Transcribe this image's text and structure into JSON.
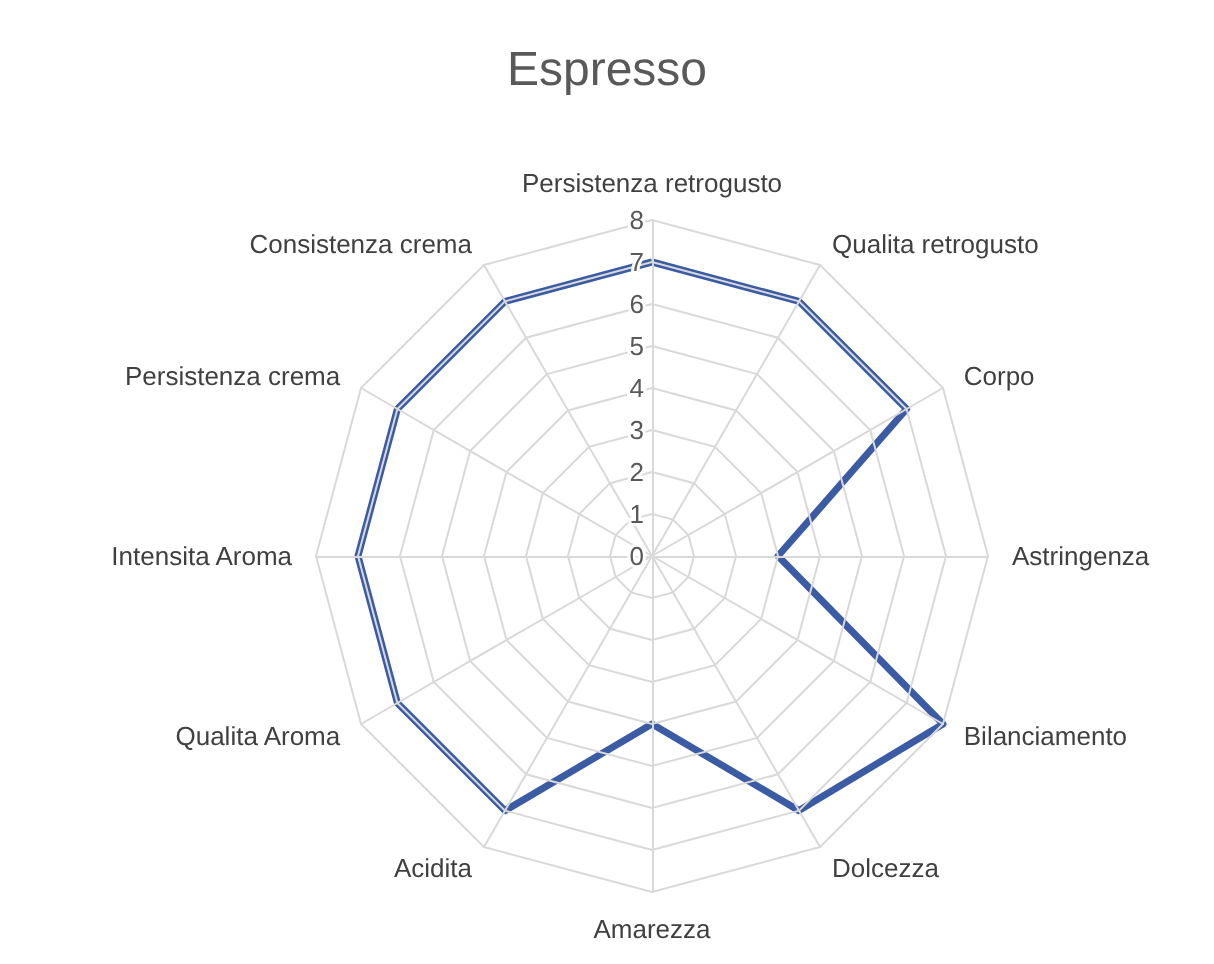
{
  "chart_data": {
    "type": "radar",
    "title": "Espresso",
    "categories": [
      "Persistenza retrogusto",
      "Qualita retrogusto",
      "Corpo",
      "Astringenza",
      "Bilanciamento",
      "Dolcezza",
      "Amarezza",
      "Acidita",
      "Qualita Aroma",
      "Intensita Aroma",
      "Persistenza crema",
      "Consistenza crema"
    ],
    "series": [
      {
        "color": "#3b5ba5",
        "values": [
          7,
          7,
          7,
          3,
          8,
          7,
          4,
          7,
          7,
          7,
          7,
          7
        ]
      }
    ],
    "ylim": [
      0,
      8
    ],
    "yticks": [
      0,
      1,
      2,
      3,
      4,
      5,
      6,
      7,
      8
    ],
    "marker": "none"
  }
}
